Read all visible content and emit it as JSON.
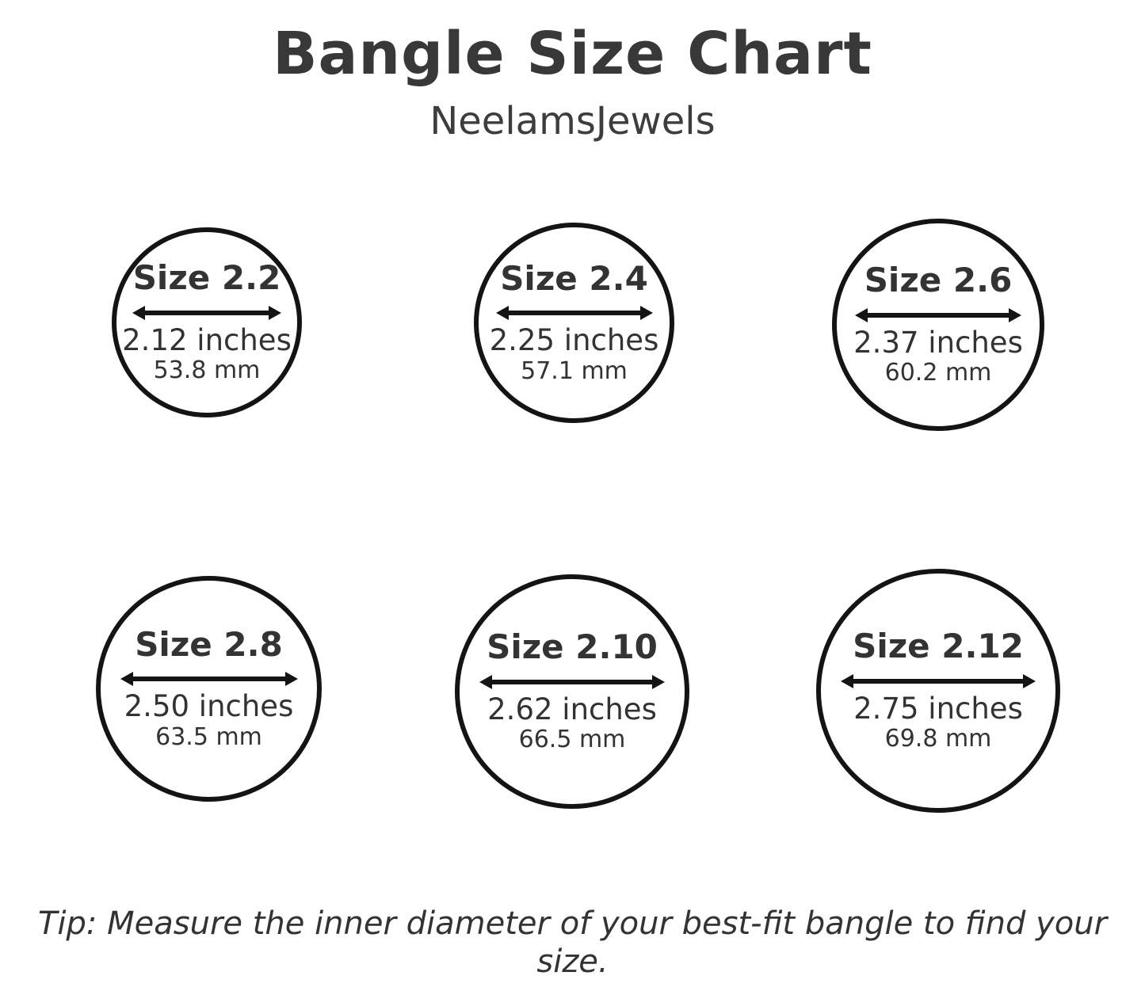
{
  "header": {
    "title": "Bangle Size Chart",
    "subtitle": "NeelamsJewels"
  },
  "sizes": [
    {
      "label": "Size 2.2",
      "inches": "2.12 inches",
      "mm": "53.8 mm"
    },
    {
      "label": "Size 2.4",
      "inches": "2.25 inches",
      "mm": "57.1 mm"
    },
    {
      "label": "Size 2.6",
      "inches": "2.37 inches",
      "mm": "60.2 mm"
    },
    {
      "label": "Size 2.8",
      "inches": "2.50 inches",
      "mm": "63.5 mm"
    },
    {
      "label": "Size 2.10",
      "inches": "2.62 inches",
      "mm": "66.5 mm"
    },
    {
      "label": "Size 2.12",
      "inches": "2.75 inches",
      "mm": "69.8 mm"
    }
  ],
  "tip": "Tip: Measure the inner diameter of your best-fit bangle to find your size.",
  "colors": {
    "text": "#333333",
    "circle_stroke": "#141414",
    "background": "#ffffff"
  }
}
